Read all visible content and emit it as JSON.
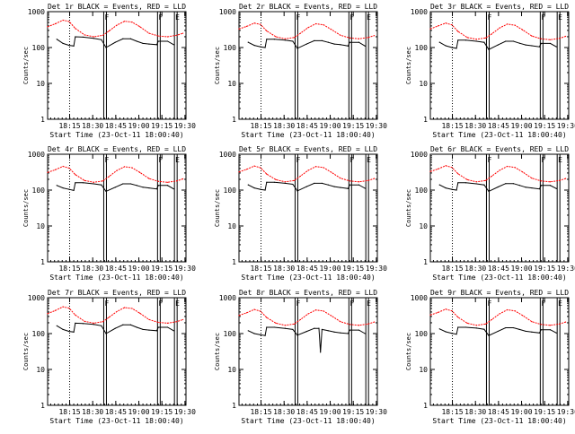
{
  "figure": {
    "background": "#ffffff",
    "axis_color": "#000000",
    "events_color": "#000000",
    "lld_color": "#ff0000"
  },
  "chart_data": [
    {
      "type": "line",
      "title": "Det 1r BLACK = Events, RED = LLD",
      "xlabel": "Start Time (23-Oct-11 18:00:40)",
      "ylabel": "Counts/sec",
      "yscale": "log",
      "ylim": [
        1,
        1000
      ],
      "x_ticks": [
        "18:15",
        "18:30",
        "18:45",
        "19:00",
        "19:15",
        "19:30"
      ],
      "y_ticks": [
        "1",
        "10",
        "100",
        "1000"
      ],
      "markers": [
        {
          "x": 36.5,
          "label": "F"
        },
        {
          "x": 71.5,
          "label": "F"
        },
        {
          "x": 82.5,
          "label": "E"
        }
      ],
      "series": [
        {
          "name": "Events",
          "x": [
            6,
            10,
            14,
            17,
            18,
            23,
            30,
            35,
            38,
            44,
            49,
            54,
            58,
            62,
            66,
            71,
            72,
            78,
            82
          ],
          "y": [
            170,
            130,
            115,
            110,
            200,
            195,
            180,
            165,
            100,
            140,
            175,
            175,
            150,
            130,
            125,
            120,
            150,
            150,
            120
          ]
        },
        {
          "name": "LLD",
          "x": [
            0,
            5,
            10,
            14,
            18,
            24,
            30,
            36,
            40,
            45,
            50,
            55,
            60,
            66,
            72,
            78,
            84,
            88
          ],
          "y": [
            380,
            460,
            580,
            530,
            340,
            225,
            200,
            220,
            290,
            420,
            540,
            510,
            380,
            250,
            210,
            200,
            220,
            250
          ]
        }
      ]
    },
    {
      "type": "line",
      "title": "Det 2r BLACK = Events, RED = LLD",
      "xlabel": "Start Time (23-Oct-11 18:00:40)",
      "ylabel": "Counts/sec",
      "yscale": "log",
      "ylim": [
        1,
        1000
      ],
      "x_ticks": [
        "18:15",
        "18:30",
        "18:45",
        "19:00",
        "19:15",
        "19:30"
      ],
      "y_ticks": [
        "1",
        "10",
        "100",
        "1000"
      ],
      "markers": [
        {
          "x": 36.5,
          "label": "F"
        },
        {
          "x": 71.5,
          "label": "F"
        },
        {
          "x": 82.5,
          "label": "E"
        }
      ],
      "series": [
        {
          "name": "Events",
          "x": [
            6,
            10,
            14,
            17,
            18,
            23,
            30,
            35,
            38,
            44,
            49,
            54,
            58,
            62,
            66,
            71,
            72,
            78,
            82
          ],
          "y": [
            140,
            115,
            105,
            100,
            170,
            170,
            160,
            150,
            95,
            125,
            155,
            155,
            140,
            125,
            120,
            110,
            140,
            140,
            110
          ]
        },
        {
          "name": "LLD",
          "x": [
            0,
            5,
            10,
            14,
            18,
            24,
            30,
            36,
            40,
            45,
            50,
            55,
            60,
            66,
            72,
            78,
            84,
            88
          ],
          "y": [
            330,
            390,
            480,
            440,
            290,
            200,
            175,
            190,
            250,
            360,
            460,
            430,
            320,
            220,
            185,
            175,
            190,
            215
          ]
        }
      ]
    },
    {
      "type": "line",
      "title": "Det 3r BLACK = Events, RED = LLD",
      "xlabel": "Start Time (23-Oct-11 18:00:40)",
      "ylabel": "Counts/sec",
      "yscale": "log",
      "ylim": [
        1,
        1000
      ],
      "x_ticks": [
        "18:15",
        "18:30",
        "18:45",
        "19:00",
        "19:15",
        "19:30"
      ],
      "y_ticks": [
        "1",
        "10",
        "100",
        "1000"
      ],
      "markers": [
        {
          "x": 36.5,
          "label": "F"
        },
        {
          "x": 71.5,
          "label": "F"
        },
        {
          "x": 82.5,
          "label": "E"
        }
      ],
      "series": [
        {
          "name": "Events",
          "x": [
            6,
            10,
            14,
            17,
            18,
            23,
            30,
            35,
            38,
            44,
            49,
            54,
            58,
            62,
            66,
            71,
            72,
            78,
            82
          ],
          "y": [
            140,
            112,
            100,
            95,
            160,
            160,
            150,
            140,
            88,
            118,
            150,
            150,
            132,
            118,
            112,
            105,
            130,
            130,
            105
          ]
        },
        {
          "name": "LLD",
          "x": [
            0,
            5,
            10,
            14,
            18,
            24,
            30,
            36,
            40,
            45,
            50,
            55,
            60,
            66,
            72,
            78,
            84,
            88
          ],
          "y": [
            330,
            400,
            480,
            430,
            280,
            190,
            170,
            185,
            240,
            350,
            450,
            420,
            310,
            210,
            175,
            165,
            180,
            205
          ]
        }
      ]
    },
    {
      "type": "line",
      "title": "Det 4r BLACK = Events, RED = LLD",
      "xlabel": "Start Time (23-Oct-11 18:00:40)",
      "ylabel": "Counts/sec",
      "yscale": "log",
      "ylim": [
        1,
        1000
      ],
      "x_ticks": [
        "18:15",
        "18:30",
        "18:45",
        "19:00",
        "19:15",
        "19:30"
      ],
      "y_ticks": [
        "1",
        "10",
        "100",
        "1000"
      ],
      "markers": [
        {
          "x": 36.5,
          "label": "F"
        },
        {
          "x": 71.5,
          "label": "F"
        },
        {
          "x": 82.5,
          "label": "E"
        }
      ],
      "series": [
        {
          "name": "Events",
          "x": [
            6,
            10,
            14,
            17,
            18,
            23,
            30,
            35,
            38,
            44,
            49,
            54,
            58,
            62,
            66,
            71,
            72,
            78,
            82
          ],
          "y": [
            135,
            115,
            105,
            98,
            160,
            160,
            150,
            140,
            92,
            120,
            150,
            150,
            135,
            120,
            115,
            108,
            135,
            135,
            108
          ]
        },
        {
          "name": "LLD",
          "x": [
            0,
            5,
            10,
            14,
            18,
            24,
            30,
            36,
            40,
            45,
            50,
            55,
            60,
            66,
            72,
            78,
            84,
            88
          ],
          "y": [
            310,
            370,
            460,
            410,
            270,
            185,
            165,
            180,
            240,
            350,
            450,
            420,
            310,
            210,
            175,
            165,
            180,
            205
          ]
        }
      ]
    },
    {
      "type": "line",
      "title": "Det 5r BLACK = Events, RED = LLD",
      "xlabel": "Start Time (23-Oct-11 18:00:40)",
      "ylabel": "Counts/sec",
      "yscale": "log",
      "ylim": [
        1,
        1000
      ],
      "x_ticks": [
        "18:15",
        "18:30",
        "18:45",
        "19:00",
        "19:15",
        "19:30"
      ],
      "y_ticks": [
        "1",
        "10",
        "100",
        "1000"
      ],
      "markers": [
        {
          "x": 36.5,
          "label": "F"
        },
        {
          "x": 71.5,
          "label": "F"
        },
        {
          "x": 82.5,
          "label": "E"
        }
      ],
      "series": [
        {
          "name": "Events",
          "x": [
            6,
            10,
            14,
            17,
            18,
            23,
            30,
            35,
            38,
            44,
            49,
            54,
            58,
            62,
            66,
            71,
            72,
            78,
            82
          ],
          "y": [
            140,
            115,
            105,
            100,
            165,
            165,
            155,
            145,
            95,
            125,
            155,
            155,
            140,
            125,
            118,
            110,
            140,
            140,
            112
          ]
        },
        {
          "name": "LLD",
          "x": [
            0,
            5,
            10,
            14,
            18,
            24,
            30,
            36,
            40,
            45,
            50,
            55,
            60,
            66,
            72,
            78,
            84,
            88
          ],
          "y": [
            320,
            380,
            470,
            420,
            280,
            195,
            170,
            185,
            245,
            355,
            455,
            425,
            315,
            215,
            180,
            170,
            185,
            210
          ]
        }
      ]
    },
    {
      "type": "line",
      "title": "Det 6r BLACK = Events, RED = LLD",
      "xlabel": "Start Time (23-Oct-11 18:00:40)",
      "ylabel": "Counts/sec",
      "yscale": "log",
      "ylim": [
        1,
        1000
      ],
      "x_ticks": [
        "18:15",
        "18:30",
        "18:45",
        "19:00",
        "19:15",
        "19:30"
      ],
      "y_ticks": [
        "1",
        "10",
        "100",
        "1000"
      ],
      "markers": [
        {
          "x": 36.5,
          "label": "F"
        },
        {
          "x": 71.5,
          "label": "F"
        },
        {
          "x": 82.5,
          "label": "E"
        }
      ],
      "series": [
        {
          "name": "Events",
          "x": [
            6,
            10,
            14,
            17,
            18,
            23,
            30,
            35,
            38,
            44,
            49,
            54,
            58,
            62,
            66,
            71,
            72,
            78,
            82
          ],
          "y": [
            140,
            115,
            105,
            100,
            160,
            160,
            150,
            140,
            92,
            122,
            152,
            152,
            136,
            120,
            115,
            108,
            135,
            135,
            110
          ]
        },
        {
          "name": "LLD",
          "x": [
            0,
            5,
            10,
            14,
            18,
            24,
            30,
            36,
            40,
            45,
            50,
            55,
            60,
            66,
            72,
            78,
            84,
            88
          ],
          "y": [
            330,
            390,
            480,
            430,
            285,
            195,
            170,
            185,
            245,
            355,
            460,
            430,
            320,
            215,
            180,
            170,
            185,
            210
          ]
        }
      ]
    },
    {
      "type": "line",
      "title": "Det 7r BLACK = Events, RED = LLD",
      "xlabel": "Start Time (23-Oct-11 18:00:40)",
      "ylabel": "Counts/sec",
      "yscale": "log",
      "ylim": [
        1,
        1000
      ],
      "x_ticks": [
        "18:15",
        "18:30",
        "18:45",
        "19:00",
        "19:15",
        "19:30"
      ],
      "y_ticks": [
        "1",
        "10",
        "100",
        "1000"
      ],
      "markers": [
        {
          "x": 36.5,
          "label": "F"
        },
        {
          "x": 71.5,
          "label": "F"
        },
        {
          "x": 82.5,
          "label": "E"
        }
      ],
      "series": [
        {
          "name": "Events",
          "x": [
            6,
            10,
            14,
            17,
            18,
            23,
            30,
            35,
            38,
            44,
            49,
            54,
            58,
            62,
            66,
            71,
            72,
            78,
            82
          ],
          "y": [
            165,
            130,
            115,
            110,
            195,
            190,
            180,
            165,
            100,
            140,
            175,
            175,
            150,
            130,
            125,
            120,
            150,
            150,
            120
          ]
        },
        {
          "name": "LLD",
          "x": [
            0,
            5,
            10,
            14,
            18,
            24,
            30,
            36,
            40,
            45,
            50,
            55,
            60,
            66,
            72,
            78,
            84,
            88
          ],
          "y": [
            360,
            440,
            560,
            510,
            330,
            220,
            195,
            215,
            285,
            410,
            530,
            500,
            370,
            245,
            205,
            195,
            215,
            245
          ]
        }
      ]
    },
    {
      "type": "line",
      "title": "Det 8r BLACK = Events, RED = LLD",
      "xlabel": "Start Time (23-Oct-11 18:00:40)",
      "ylabel": "Counts/sec",
      "yscale": "log",
      "ylim": [
        1,
        1000
      ],
      "x_ticks": [
        "18:15",
        "18:30",
        "18:45",
        "19:00",
        "19:15",
        "19:30"
      ],
      "y_ticks": [
        "1",
        "10",
        "100",
        "1000"
      ],
      "markers": [
        {
          "x": 36.5,
          "label": "F"
        },
        {
          "x": 71.5,
          "label": "F"
        },
        {
          "x": 82.5,
          "label": "E"
        }
      ],
      "series": [
        {
          "name": "Events",
          "x": [
            6,
            10,
            14,
            17,
            18,
            23,
            30,
            35,
            38,
            44,
            49,
            52,
            53,
            54,
            58,
            62,
            66,
            71,
            72,
            78,
            82
          ],
          "y": [
            120,
            100,
            92,
            88,
            150,
            150,
            140,
            130,
            90,
            115,
            140,
            140,
            30,
            130,
            120,
            110,
            105,
            100,
            125,
            125,
            100
          ]
        },
        {
          "name": "LLD",
          "x": [
            0,
            5,
            10,
            14,
            18,
            24,
            30,
            36,
            40,
            45,
            50,
            55,
            60,
            66,
            72,
            78,
            84,
            88
          ],
          "y": [
            320,
            380,
            470,
            420,
            280,
            195,
            170,
            185,
            245,
            355,
            455,
            425,
            315,
            215,
            180,
            170,
            185,
            210
          ]
        }
      ]
    },
    {
      "type": "line",
      "title": "Det 9r BLACK = Events, RED = LLD",
      "xlabel": "Start Time (23-Oct-11 18:00:40)",
      "ylabel": "Counts/sec",
      "yscale": "log",
      "ylim": [
        1,
        1000
      ],
      "x_ticks": [
        "18:15",
        "18:30",
        "18:45",
        "19:00",
        "19:15",
        "19:30"
      ],
      "y_ticks": [
        "1",
        "10",
        "100",
        "1000"
      ],
      "markers": [
        {
          "x": 36.5,
          "label": "F"
        },
        {
          "x": 71.5,
          "label": "F"
        },
        {
          "x": 82.5,
          "label": "E"
        }
      ],
      "series": [
        {
          "name": "Events",
          "x": [
            6,
            10,
            14,
            17,
            18,
            23,
            30,
            35,
            38,
            44,
            49,
            54,
            58,
            62,
            66,
            71,
            72,
            78,
            82
          ],
          "y": [
            135,
            112,
            102,
            96,
            150,
            150,
            142,
            132,
            88,
            116,
            145,
            145,
            130,
            116,
            110,
            104,
            128,
            128,
            104
          ]
        },
        {
          "name": "LLD",
          "x": [
            0,
            5,
            10,
            14,
            18,
            24,
            30,
            36,
            40,
            45,
            50,
            55,
            60,
            66,
            72,
            78,
            84,
            88
          ],
          "y": [
            330,
            390,
            480,
            430,
            285,
            195,
            170,
            185,
            245,
            355,
            460,
            430,
            320,
            215,
            180,
            170,
            185,
            210
          ]
        }
      ]
    }
  ]
}
